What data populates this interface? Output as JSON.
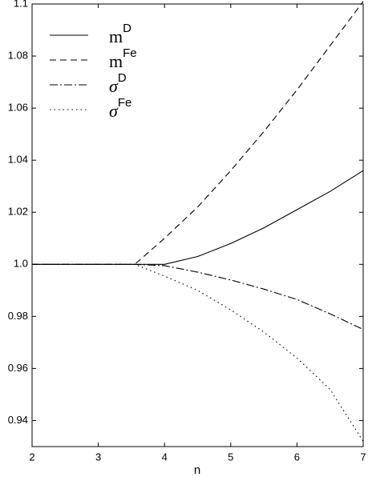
{
  "chart_data": {
    "type": "line",
    "xlabel": "n",
    "x": [
      2,
      3,
      3.55,
      4,
      4.5,
      5,
      5.5,
      6,
      6.5,
      7
    ],
    "series": [
      {
        "name": "m",
        "name_superscript": "D",
        "color": "#000000",
        "dash": "solid",
        "values": [
          1,
          1,
          1,
          1,
          1.003,
          1.008,
          1.014,
          1.021,
          1.028,
          1.036
        ]
      },
      {
        "name": "m",
        "name_superscript": "Fe",
        "color": "#000000",
        "dash": "dashed",
        "values": [
          1,
          1,
          1,
          1.01,
          1.022,
          1.036,
          1.051,
          1.067,
          1.084,
          1.101
        ]
      },
      {
        "name": "σ",
        "name_superscript": "D",
        "color": "#000000",
        "dash": "dashdot",
        "values": [
          1,
          1,
          1,
          0.9995,
          0.997,
          0.994,
          0.9905,
          0.9865,
          0.981,
          0.975
        ]
      },
      {
        "name": "σ",
        "name_superscript": "Fe",
        "color": "#000000",
        "dash": "dotted",
        "values": [
          1,
          1,
          1,
          0.9955,
          0.99,
          0.9825,
          0.974,
          0.964,
          0.952,
          0.932
        ]
      }
    ],
    "xlim": [
      2,
      7
    ],
    "xticks": [
      2,
      3,
      4,
      5,
      6,
      7
    ],
    "ylim": [
      0.93,
      1.1
    ],
    "yticks": [
      0.94,
      0.96,
      0.98,
      {
        "value": 1,
        "label": "1.0"
      },
      1.02,
      1.04,
      1.06,
      1.08,
      1.1
    ],
    "grid": false,
    "legend": "upper left"
  }
}
